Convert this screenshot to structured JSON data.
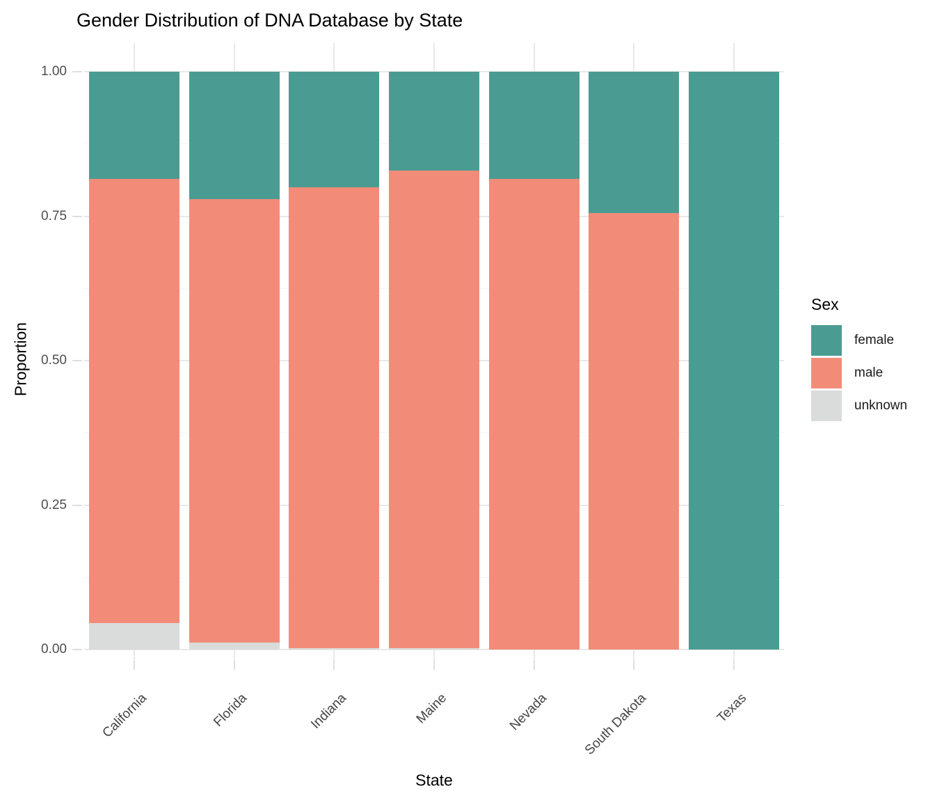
{
  "chart_data": {
    "type": "bar",
    "stacked": true,
    "orientation": "vertical",
    "title": "Gender Distribution of DNA Database by State",
    "xlabel": "State",
    "ylabel": "Proportion",
    "categories": [
      "California",
      "Florida",
      "Indiana",
      "Maine",
      "Nevada",
      "South Dakota",
      "Texas"
    ],
    "series": [
      {
        "name": "female",
        "color": "#4a9c92",
        "values": [
          0.186,
          0.221,
          0.2,
          0.171,
          0.185,
          0.245,
          1.0
        ]
      },
      {
        "name": "male",
        "color": "#f28c79",
        "values": [
          0.768,
          0.767,
          0.798,
          0.827,
          0.815,
          0.755,
          0.0
        ]
      },
      {
        "name": "unknown",
        "color": "#d9dcda",
        "values": [
          0.046,
          0.012,
          0.002,
          0.002,
          0.0,
          0.0,
          0.0
        ]
      }
    ],
    "stack_order_bottom_to_top": [
      "unknown",
      "male",
      "female"
    ],
    "ylim": [
      0,
      1
    ],
    "yticks": [
      0.0,
      0.25,
      0.5,
      0.75,
      1.0
    ],
    "ytick_labels": [
      "0.00",
      "0.25",
      "0.50",
      "0.75",
      "1.00"
    ],
    "yminor": [
      0.125,
      0.375,
      0.625,
      0.875
    ],
    "x_label_angle_deg": 45,
    "grid": true,
    "legend_title": "Sex",
    "legend_position": "right",
    "background_color": "#ffffff",
    "gridline_color": "#e8e8e8"
  }
}
